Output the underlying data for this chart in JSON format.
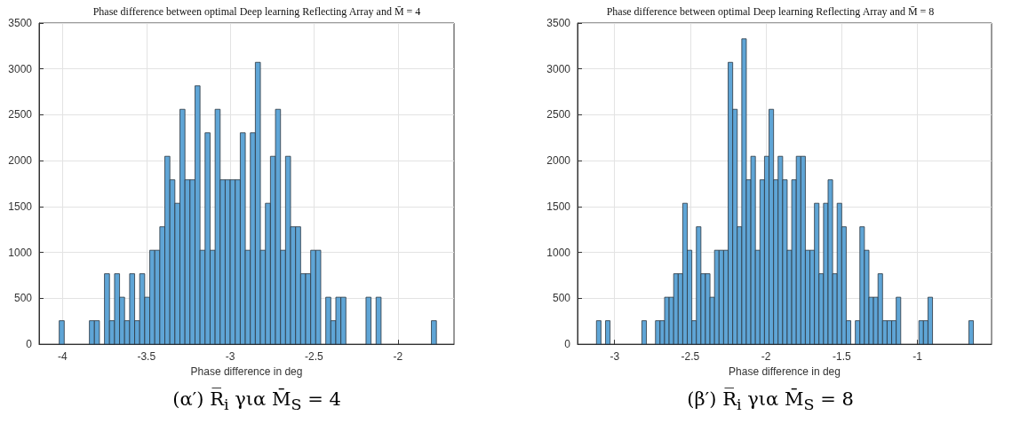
{
  "chart_data": [
    {
      "type": "histogram",
      "title": "Phase difference between optimal Deep learning Reflecting Array and M̄ = 4",
      "xlabel": "Phase difference in deg",
      "annotations": [
        "(α′) R̅$_{i}$ για M̄$_{S}$ = 4"
      ],
      "color": "#5fa5d6",
      "bins": [
        -4.02,
        -3.99,
        -3.96,
        -3.93,
        -3.9,
        -3.87,
        -3.84,
        -3.81,
        -3.78,
        -3.75,
        -3.72,
        -3.69,
        -3.66,
        -3.63,
        -3.6,
        -3.57,
        -3.54,
        -3.51,
        -3.48,
        -3.45,
        -3.42,
        -3.39,
        -3.36,
        -3.33,
        -3.3,
        -3.27,
        -3.24,
        -3.21,
        -3.18,
        -3.15,
        -3.12,
        -3.09,
        -3.06,
        -3.03,
        -3,
        -2.97,
        -2.94,
        -2.91,
        -2.88,
        -2.85,
        -2.82,
        -2.79,
        -2.76,
        -2.73,
        -2.7,
        -2.67,
        -2.64,
        -2.61,
        -2.58,
        -2.55,
        -2.52,
        -2.49,
        -2.46,
        -2.43,
        -2.4,
        -2.37,
        -2.34,
        -2.31,
        -2.28,
        -2.25,
        -2.22,
        -2.19,
        -2.16,
        -2.13,
        -2.1,
        -2.07,
        -2.04,
        -2.01,
        -1.98,
        -1.95,
        -1.92,
        -1.89,
        -1.86,
        -1.83,
        -1.8,
        -1.77
      ],
      "values": [
        256,
        0,
        0,
        0,
        0,
        0,
        256,
        256,
        0,
        768,
        256,
        768,
        512,
        256,
        768,
        256,
        768,
        512,
        1024,
        1024,
        1280,
        2048,
        1792,
        1536,
        2560,
        1792,
        1792,
        2816,
        1024,
        2304,
        1024,
        2560,
        1792,
        1792,
        1792,
        1792,
        2304,
        1024,
        2304,
        3072,
        1024,
        1536,
        2048,
        2560,
        1024,
        2048,
        1280,
        1280,
        768,
        768,
        1024,
        1024,
        0,
        512,
        256,
        512,
        512,
        0,
        0,
        0,
        0,
        512,
        0,
        512,
        0,
        0,
        0,
        0,
        0,
        0,
        0,
        0,
        0,
        0,
        256
      ],
      "xlim": [
        -4.14,
        -1.665
      ],
      "xticks": [
        -4,
        -3.5,
        -3,
        -2.5,
        -2
      ],
      "ylim": [
        0,
        3500
      ],
      "yticks": [
        0,
        500,
        1000,
        1500,
        2000,
        2500,
        3000,
        3500
      ],
      "grid": true
    },
    {
      "type": "histogram",
      "title": "Phase difference between optimal Deep learning Reflecting Array and M̄ = 8",
      "xlabel": "Phase difference in deg",
      "annotations": [
        "(β′) R̅$_{i}$ για M̄$_{S}$ = 8"
      ],
      "color": "#5fa5d6",
      "bins": [
        -3.12,
        -3.09,
        -3.06,
        -3.03,
        -3,
        -2.97,
        -2.94,
        -2.91,
        -2.88,
        -2.85,
        -2.82,
        -2.79,
        -2.76,
        -2.73,
        -2.7,
        -2.67,
        -2.64,
        -2.61,
        -2.58,
        -2.55,
        -2.52,
        -2.49,
        -2.46,
        -2.43,
        -2.4,
        -2.37,
        -2.34,
        -2.31,
        -2.28,
        -2.25,
        -2.22,
        -2.19,
        -2.16,
        -2.13,
        -2.1,
        -2.07,
        -2.04,
        -2.01,
        -1.98,
        -1.95,
        -1.92,
        -1.89,
        -1.86,
        -1.83,
        -1.8,
        -1.77,
        -1.74,
        -1.71,
        -1.68,
        -1.65,
        -1.62,
        -1.59,
        -1.56,
        -1.53,
        -1.5,
        -1.47,
        -1.44,
        -1.41,
        -1.38,
        -1.35,
        -1.32,
        -1.29,
        -1.26,
        -1.23,
        -1.2,
        -1.17,
        -1.14,
        -1.11,
        -1.08,
        -1.05,
        -1.02,
        -0.99,
        -0.96,
        -0.93,
        -0.9,
        -0.87,
        -0.84,
        -0.81,
        -0.78,
        -0.75,
        -0.72,
        -0.69,
        -0.66,
        -0.63
      ],
      "values": [
        256,
        0,
        256,
        0,
        0,
        0,
        0,
        0,
        0,
        0,
        256,
        0,
        0,
        256,
        256,
        512,
        512,
        768,
        768,
        1536,
        1024,
        256,
        1280,
        768,
        768,
        512,
        1024,
        1024,
        1024,
        3072,
        2560,
        1280,
        3328,
        1792,
        2048,
        1024,
        1792,
        2048,
        2560,
        1792,
        2048,
        1792,
        1024,
        1792,
        2048,
        2048,
        1024,
        1024,
        1536,
        768,
        1536,
        1792,
        768,
        1536,
        1280,
        256,
        0,
        256,
        1280,
        1024,
        512,
        512,
        768,
        256,
        256,
        256,
        512,
        0,
        0,
        0,
        0,
        256,
        256,
        512,
        0,
        0,
        0,
        0,
        0,
        0,
        0,
        0,
        256
      ],
      "xlim": [
        -3.245,
        -0.51
      ],
      "xticks": [
        -3,
        -2.5,
        -2,
        -1.5,
        -1
      ],
      "ylim": [
        0,
        3500
      ],
      "yticks": [
        0,
        500,
        1000,
        1500,
        2000,
        2500,
        3000,
        3500
      ],
      "grid": true
    }
  ]
}
